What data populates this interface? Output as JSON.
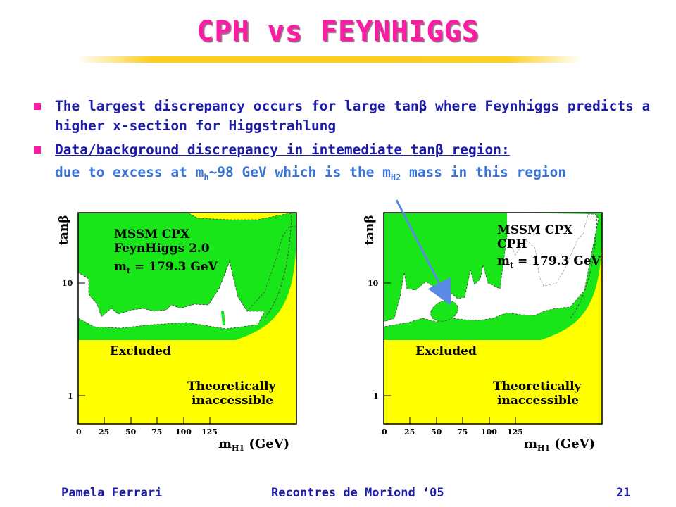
{
  "slide": {
    "title": "CPH vs FEYNHIGGS",
    "bullet1_pre": "The largest discrepancy occurs for large tan",
    "bullet1_sym": "β",
    "bullet1_post": " where Feynhiggs predicts a higher x-section for Higgstrahlung",
    "bullet2_pre": "Data/background discrepancy in intemediate tan",
    "bullet2_sym": "β",
    "bullet2_post": " region:",
    "bullet2_line2_a": "due to excess at m",
    "bullet2_line2_sub1": "h",
    "bullet2_line2_b": "~98 GeV which is the m",
    "bullet2_line2_sub2": "H2",
    "bullet2_line2_c": " mass in this region"
  },
  "plots": [
    {
      "ylabel": "tanβ",
      "legend_line1": "MSSM CPX",
      "legend_line2": "FeynHiggs 2.0",
      "legend_line3": "m",
      "legend_sub": "t",
      "legend_line3_post": " = 179.3 GeV",
      "excluded_label": "Excluded",
      "theo_line1": "Theoretically",
      "theo_line2": "inaccessible",
      "y_ticks": [
        "10",
        "1"
      ],
      "x_ticks": [
        "0",
        "25",
        "50",
        "75",
        "100",
        "125"
      ],
      "xlabel": "m",
      "xlabel_sub": "H1",
      "xlabel_post": " (GeV)"
    },
    {
      "ylabel": "tanβ",
      "legend_line1": "MSSM CPX",
      "legend_line2": "CPH",
      "legend_line3": "m",
      "legend_sub": "t",
      "legend_line3_post": " = 179.3 GeV",
      "excluded_label": "Excluded",
      "theo_line1": "Theoretically",
      "theo_line2": "inaccessible",
      "y_ticks": [
        "10",
        "1"
      ],
      "x_ticks": [
        "0",
        "25",
        "50",
        "75",
        "100",
        "125"
      ],
      "xlabel": "m",
      "xlabel_sub": "H1",
      "xlabel_post": " (GeV)"
    }
  ],
  "footer": {
    "author": "Pamela Ferrari",
    "conference": "Recontres de Moriond ‘05",
    "page": "21"
  },
  "colors": {
    "title": "#ff1aa3",
    "text": "#1c1ca6",
    "excluded": "#19e619",
    "theoretical": "#ffff00",
    "arrow": "#5a8ae6"
  }
}
